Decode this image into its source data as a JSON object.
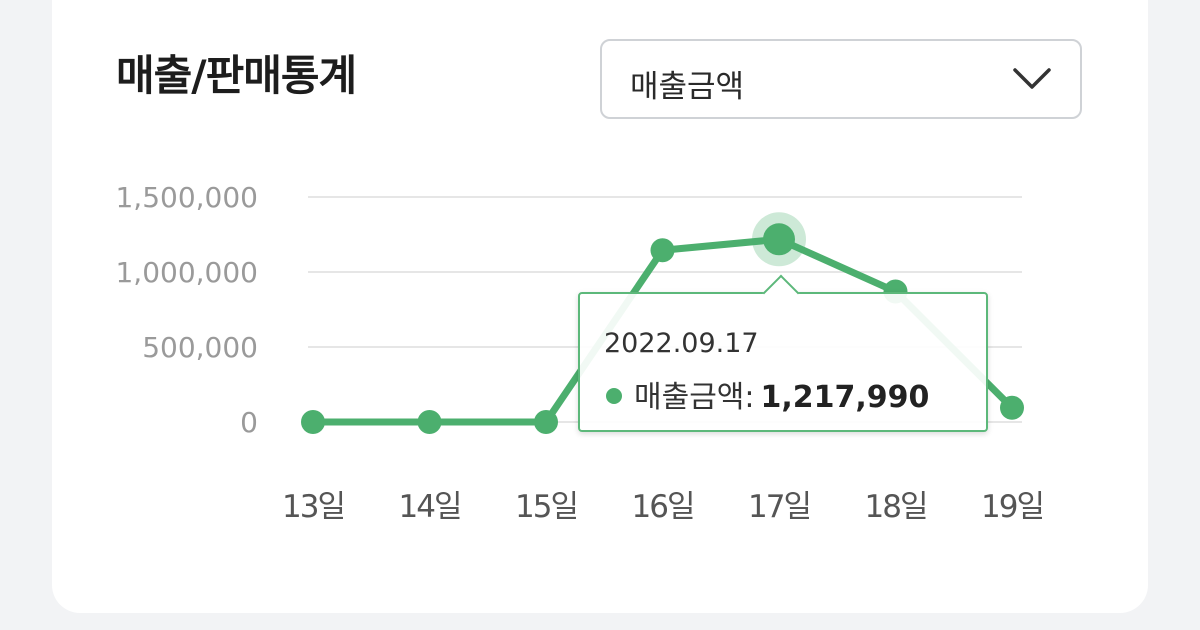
{
  "header": {
    "title": "매출/판매통계"
  },
  "metric_select": {
    "value": "매출금액",
    "icon": "chevron-down-icon"
  },
  "colors": {
    "series": "#4caf6e",
    "grid": "#e6e6e6"
  },
  "tooltip": {
    "date": "2022.09.17",
    "label": "매출금액:",
    "value": "1,217,990"
  },
  "chart_data": {
    "type": "line",
    "categories": [
      "13일",
      "14일",
      "15일",
      "16일",
      "17일",
      "18일",
      "19일"
    ],
    "series": [
      {
        "name": "매출금액",
        "values": [
          0,
          0,
          0,
          1145000,
          1217990,
          870000,
          95000
        ]
      }
    ],
    "yticks": [
      "1,500,000",
      "1,000,000",
      "500,000",
      "0"
    ],
    "ylim": [
      0,
      1500000
    ],
    "grid": true,
    "highlight_index": 4
  }
}
